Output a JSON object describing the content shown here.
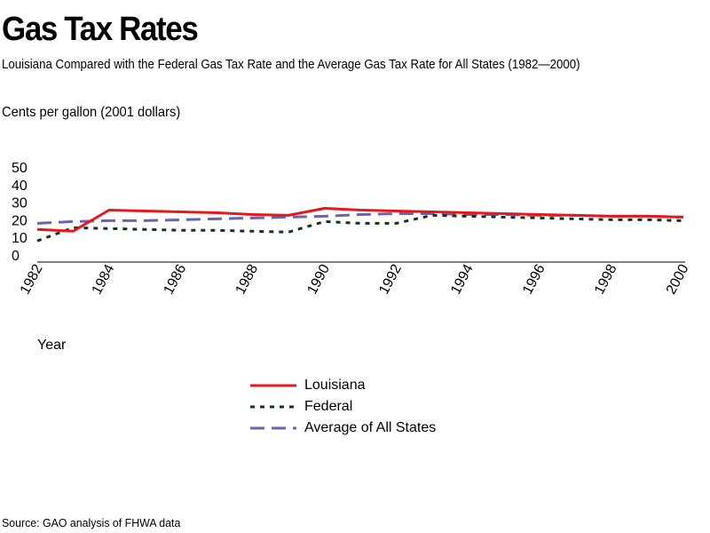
{
  "title": "Gas Tax Rates",
  "subtitle": "Louisiana Compared with the Federal Gas Tax Rate and the Average Gas Tax Rate for All States (1982—2000)",
  "source": "Source: GAO analysis of FHWA data",
  "colors": {
    "louisiana": "#e31a1c",
    "federal": "#17321f",
    "states": "#6a63b0",
    "axis": "#000000"
  },
  "chart_data": {
    "type": "line",
    "xlabel": "Year",
    "ylabel": "Cents per gallon (2001 dollars)",
    "xlim": [
      1982,
      2000
    ],
    "ylim": [
      0,
      50
    ],
    "yticks": [
      "50",
      "40",
      "30",
      "20",
      "10",
      "0"
    ],
    "xticks": [
      "1982",
      "1984",
      "1986",
      "1988",
      "1990",
      "1992",
      "1994",
      "1996",
      "1998",
      "2000"
    ],
    "legend_position": "bottom-center",
    "grid": false,
    "series": [
      {
        "name": "Louisiana",
        "key": "louisiana",
        "style": "solid",
        "x": [
          1982,
          1983,
          1984,
          1985,
          1986,
          1987,
          1988,
          1989,
          1990,
          1991,
          1992,
          1993,
          1994,
          1995,
          1996,
          1997,
          1998,
          1999,
          2000
        ],
        "y": [
          14.5,
          13.5,
          25.5,
          25,
          24.5,
          24,
          23,
          22.5,
          26.5,
          25.5,
          25,
          24.5,
          24,
          23.5,
          23,
          22.5,
          22,
          22,
          21.5
        ]
      },
      {
        "name": "Federal",
        "key": "federal",
        "style": "dotted",
        "x": [
          1982,
          1983,
          1984,
          1985,
          1986,
          1987,
          1988,
          1989,
          1990,
          1991,
          1992,
          1993,
          1994,
          1995,
          1996,
          1997,
          1998,
          1999,
          2000
        ],
        "y": [
          8,
          15.5,
          15,
          14.5,
          14,
          14,
          13.5,
          13,
          19,
          18,
          18,
          22.5,
          22,
          21.5,
          21,
          20.5,
          20,
          20,
          19.5
        ]
      },
      {
        "name": "Average of All States",
        "key": "states",
        "style": "dashed",
        "x": [
          1982,
          1983,
          1984,
          1985,
          1986,
          1987,
          1988,
          1989,
          1990,
          1991,
          1992,
          1993,
          1994,
          1995,
          1996,
          1997,
          1998,
          1999,
          2000
        ],
        "y": [
          18,
          19,
          19.5,
          19.5,
          20,
          20.5,
          21,
          21.5,
          22,
          23,
          23.5,
          23.5,
          23,
          23,
          22.5,
          22.5,
          22,
          22,
          21.5
        ]
      }
    ]
  }
}
